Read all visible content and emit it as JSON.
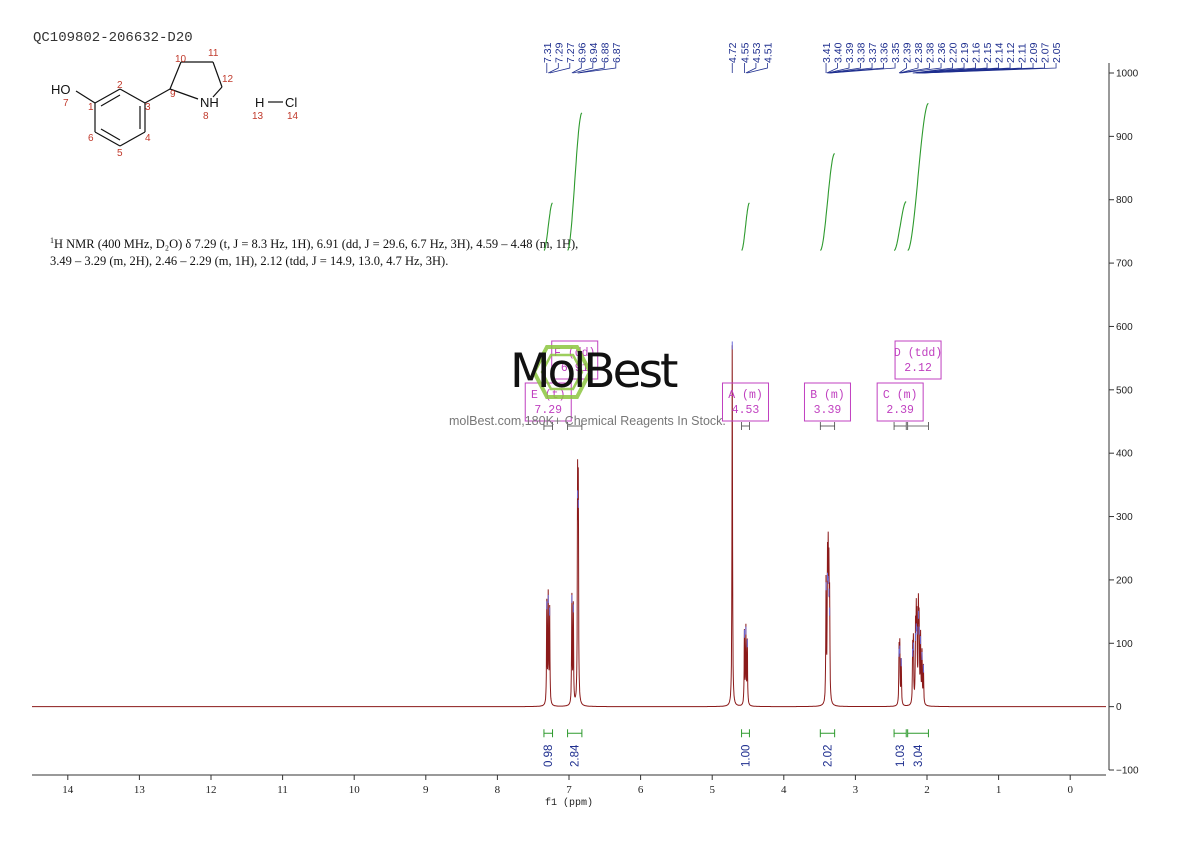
{
  "sample_id": "QC109802-206632-D20",
  "structure": {
    "atoms": [
      {
        "label": "HO",
        "num": "7"
      },
      {
        "label": "",
        "num": "1"
      },
      {
        "label": "",
        "num": "2"
      },
      {
        "label": "",
        "num": "3"
      },
      {
        "label": "",
        "num": "4"
      },
      {
        "label": "",
        "num": "5"
      },
      {
        "label": "",
        "num": "6"
      },
      {
        "label": "",
        "num": "9"
      },
      {
        "label": "",
        "num": "10"
      },
      {
        "label": "",
        "num": "11"
      },
      {
        "label": "",
        "num": "12"
      },
      {
        "label": "NH",
        "num": "8"
      },
      {
        "label": "H",
        "num": "13"
      },
      {
        "label": "Cl",
        "num": "14"
      }
    ]
  },
  "nmr_header": {
    "line1_prefix": "1",
    "line1": "H NMR (400 MHz, D₂O) δ 7.29 (t, J = 8.3 Hz, 1H), 6.91 (dd, J = 29.6, 6.7 Hz, 3H), 4.59 – 4.48 (m, 1H),",
    "line2": "3.49 – 3.29 (m, 2H), 2.46 – 2.29 (m, 1H), 2.12 (tdd, J = 14.9, 13.0, 4.7 Hz, 3H)."
  },
  "watermark": {
    "brand": "MolBest",
    "tagline": "molBest.com,180K+ Chemical Reagents In Stock."
  },
  "colors": {
    "spectrum": "#8b1a1a",
    "integral": "#2e9a2e",
    "peak_label": "#1f2f8f",
    "multiplet_box": "#c040c0",
    "axis": "#333333",
    "watermark": "#8cc63f"
  },
  "chart_data": {
    "type": "line",
    "xlabel": "f1 (ppm)",
    "xlim": [
      14.5,
      -0.5
    ],
    "ylim": [
      -100,
      1000
    ],
    "x_ticks": [
      14,
      13,
      12,
      11,
      10,
      9,
      8,
      7,
      6,
      5,
      4,
      3,
      2,
      1,
      0
    ],
    "y_ticks": [
      -100,
      0,
      100,
      200,
      300,
      400,
      500,
      600,
      700,
      800,
      900,
      1000
    ],
    "peaks": [
      {
        "ppm": 7.31,
        "height": 160
      },
      {
        "ppm": 7.29,
        "height": 170
      },
      {
        "ppm": 7.27,
        "height": 150
      },
      {
        "ppm": 6.96,
        "height": 170
      },
      {
        "ppm": 6.94,
        "height": 155
      },
      {
        "ppm": 6.88,
        "height": 335
      },
      {
        "ppm": 6.87,
        "height": 320
      },
      {
        "ppm": 4.72,
        "height": 570
      },
      {
        "ppm": 4.55,
        "height": 115
      },
      {
        "ppm": 4.53,
        "height": 120
      },
      {
        "ppm": 4.51,
        "height": 100
      },
      {
        "ppm": 3.41,
        "height": 190
      },
      {
        "ppm": 3.39,
        "height": 205
      },
      {
        "ppm": 3.38,
        "height": 200
      },
      {
        "ppm": 3.37,
        "height": 180
      },
      {
        "ppm": 3.36,
        "height": 150
      },
      {
        "ppm": 2.39,
        "height": 85
      },
      {
        "ppm": 2.38,
        "height": 90
      },
      {
        "ppm": 2.36,
        "height": 70
      },
      {
        "ppm": 2.2,
        "height": 85
      },
      {
        "ppm": 2.19,
        "height": 95
      },
      {
        "ppm": 2.16,
        "height": 110
      },
      {
        "ppm": 2.15,
        "height": 125
      },
      {
        "ppm": 2.14,
        "height": 120
      },
      {
        "ppm": 2.12,
        "height": 145
      },
      {
        "ppm": 2.11,
        "height": 120
      },
      {
        "ppm": 2.09,
        "height": 105
      },
      {
        "ppm": 2.07,
        "height": 80
      },
      {
        "ppm": 2.05,
        "height": 60
      }
    ],
    "peak_labels": [
      "7.31",
      "7.29",
      "7.27",
      "6.96",
      "6.94",
      "6.88",
      "6.87",
      "4.72",
      "4.55",
      "4.53",
      "4.51",
      "3.41",
      "3.40",
      "3.39",
      "3.38",
      "3.37",
      "3.36",
      "3.35",
      "2.39",
      "2.38",
      "2.38",
      "2.36",
      "2.20",
      "2.19",
      "2.16",
      "2.15",
      "2.14",
      "2.12",
      "2.11",
      "2.09",
      "2.07",
      "2.05"
    ],
    "multiplets": [
      {
        "name": "E (t)",
        "shift": "7.29",
        "range": [
          7.35,
          7.23
        ]
      },
      {
        "name": "F (dd)",
        "shift": "6.91",
        "range": [
          7.02,
          6.82
        ]
      },
      {
        "name": "A (m)",
        "shift": "4.53",
        "range": [
          4.59,
          4.48
        ]
      },
      {
        "name": "B (m)",
        "shift": "3.39",
        "range": [
          3.49,
          3.29
        ]
      },
      {
        "name": "C (m)",
        "shift": "2.39",
        "range": [
          2.46,
          2.29
        ]
      },
      {
        "name": "D (tdd)",
        "shift": "2.12",
        "range": [
          2.27,
          1.98
        ]
      }
    ],
    "integrals": [
      {
        "value": "0.98",
        "range": [
          7.35,
          7.23
        ],
        "start": 720,
        "end": 795
      },
      {
        "value": "2.84",
        "range": [
          7.02,
          6.82
        ],
        "start": 720,
        "end": 937
      },
      {
        "value": "1.00",
        "range": [
          4.59,
          4.48
        ],
        "start": 720,
        "end": 795
      },
      {
        "value": "2.02",
        "range": [
          3.49,
          3.29
        ],
        "start": 720,
        "end": 873
      },
      {
        "value": "1.03",
        "range": [
          2.46,
          2.29
        ],
        "start": 720,
        "end": 797
      },
      {
        "value": "3.04",
        "range": [
          2.27,
          1.98
        ],
        "start": 720,
        "end": 952
      }
    ]
  }
}
